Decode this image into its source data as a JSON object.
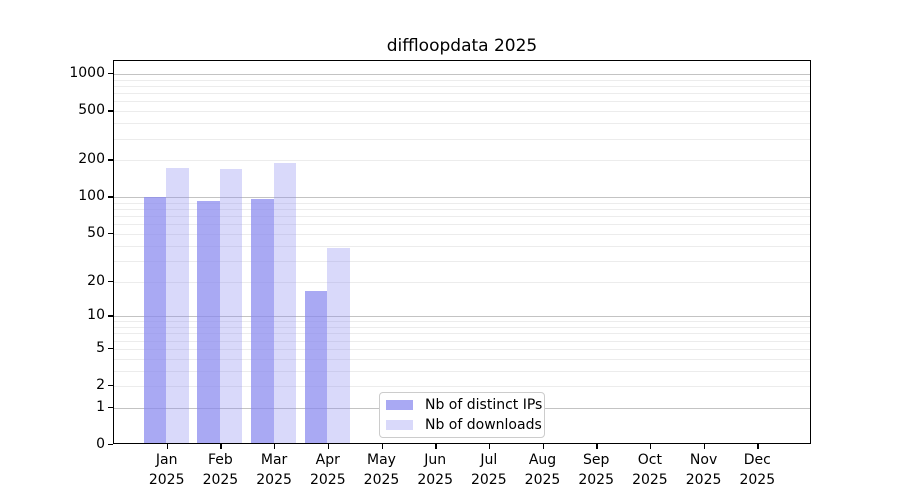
{
  "chart_data": {
    "type": "bar",
    "title": "diffloopdata 2025",
    "categories": [
      "Jan 2025",
      "Feb 2025",
      "Mar 2025",
      "Apr 2025",
      "May 2025",
      "Jun 2025",
      "Jul 2025",
      "Aug 2025",
      "Sep 2025",
      "Oct 2025",
      "Nov 2025",
      "Dec 2025"
    ],
    "series": [
      {
        "name": "Nb of distinct IPs",
        "values": [
          97,
          90,
          94,
          16,
          0,
          0,
          0,
          0,
          0,
          0,
          0,
          0
        ],
        "alpha": 0.72
      },
      {
        "name": "Nb of downloads",
        "values": [
          166,
          163,
          183,
          37,
          0,
          0,
          0,
          0,
          0,
          0,
          0,
          0
        ],
        "alpha": 0.32
      }
    ],
    "bar_base_color": "#8888ee",
    "y_ticks": [
      1000,
      500,
      200,
      100,
      50,
      20,
      10,
      5,
      2,
      1,
      0
    ],
    "ylim": [
      0,
      1275
    ],
    "yscale": "log10(value+1)",
    "grid": "horizontal",
    "legend_position": "lower center"
  },
  "colors": {
    "minor_grid": "#ececec",
    "major_grid": "#c3c3c3",
    "axis": "#000000",
    "background": "#ffffff"
  }
}
